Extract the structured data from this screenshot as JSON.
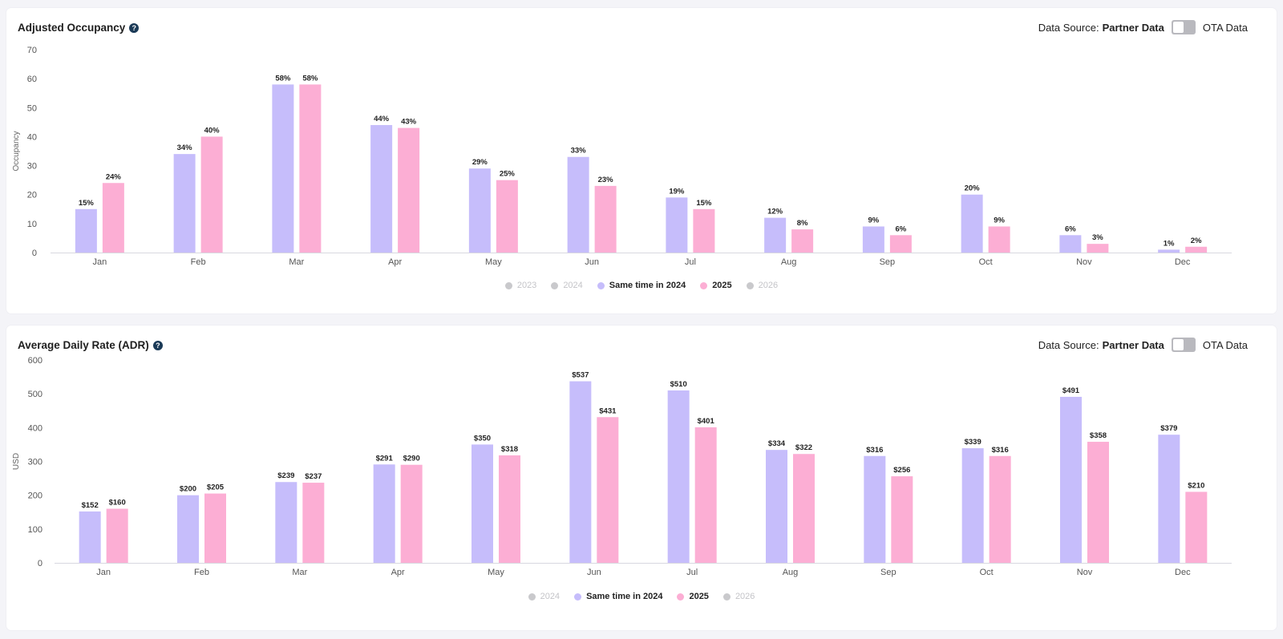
{
  "colors": {
    "prev": "#c6bdfb",
    "curr": "#fcaed4",
    "inactive": "#c9c9cc",
    "axis": "#d8d8e0"
  },
  "data_source": {
    "label": "Data Source:",
    "partner": "Partner Data",
    "ota": "OTA Data"
  },
  "occupancy": {
    "title": "Adjusted Occupancy",
    "legend": [
      {
        "label": "2023",
        "active": false
      },
      {
        "label": "2024",
        "active": false
      },
      {
        "label": "Same time in 2024",
        "active": true,
        "series": "prev"
      },
      {
        "label": "2025",
        "active": true,
        "series": "curr"
      },
      {
        "label": "2026",
        "active": false
      }
    ]
  },
  "adr": {
    "title": "Average Daily Rate (ADR)",
    "legend": [
      {
        "label": "2024",
        "active": false
      },
      {
        "label": "Same time in 2024",
        "active": true,
        "series": "prev"
      },
      {
        "label": "2025",
        "active": true,
        "series": "curr"
      },
      {
        "label": "2026",
        "active": false
      }
    ]
  },
  "chart_data": [
    {
      "type": "bar",
      "title": "Adjusted Occupancy",
      "xlabel": "",
      "ylabel": "Occupancy",
      "ylim": [
        0,
        70
      ],
      "yticks": [
        0,
        10,
        20,
        30,
        40,
        50,
        60,
        70
      ],
      "categories": [
        "Jan",
        "Feb",
        "Mar",
        "Apr",
        "May",
        "Jun",
        "Jul",
        "Aug",
        "Sep",
        "Oct",
        "Nov",
        "Dec"
      ],
      "series": [
        {
          "name": "Same time in 2024",
          "values": [
            15,
            34,
            58,
            44,
            29,
            33,
            19,
            12,
            9,
            20,
            6,
            1
          ],
          "labels": [
            "15%",
            "34%",
            "58%",
            "44%",
            "29%",
            "33%",
            "19%",
            "12%",
            "9%",
            "20%",
            "6%",
            "1%"
          ]
        },
        {
          "name": "2025",
          "values": [
            24,
            40,
            58,
            43,
            25,
            23,
            15,
            8,
            6,
            9,
            3,
            2
          ],
          "labels": [
            "24%",
            "40%",
            "58%",
            "43%",
            "25%",
            "23%",
            "15%",
            "8%",
            "6%",
            "9%",
            "3%",
            "2%"
          ]
        }
      ]
    },
    {
      "type": "bar",
      "title": "Average Daily Rate (ADR)",
      "xlabel": "",
      "ylabel": "USD",
      "ylim": [
        0,
        600
      ],
      "yticks": [
        0,
        100,
        200,
        300,
        400,
        500,
        600
      ],
      "categories": [
        "Jan",
        "Feb",
        "Mar",
        "Apr",
        "May",
        "Jun",
        "Jul",
        "Aug",
        "Sep",
        "Oct",
        "Nov",
        "Dec"
      ],
      "series": [
        {
          "name": "Same time in 2024",
          "values": [
            152,
            200,
            239,
            291,
            350,
            537,
            510,
            334,
            316,
            339,
            491,
            379
          ],
          "labels": [
            "$152",
            "$200",
            "$239",
            "$291",
            "$350",
            "$537",
            "$510",
            "$334",
            "$316",
            "$339",
            "$491",
            "$379"
          ]
        },
        {
          "name": "2025",
          "values": [
            160,
            205,
            237,
            290,
            318,
            431,
            401,
            322,
            256,
            316,
            358,
            210
          ],
          "labels": [
            "$160",
            "$205",
            "$237",
            "$290",
            "$318",
            "$431",
            "$401",
            "$322",
            "$256",
            "$316",
            "$358",
            "$210"
          ]
        }
      ]
    }
  ]
}
